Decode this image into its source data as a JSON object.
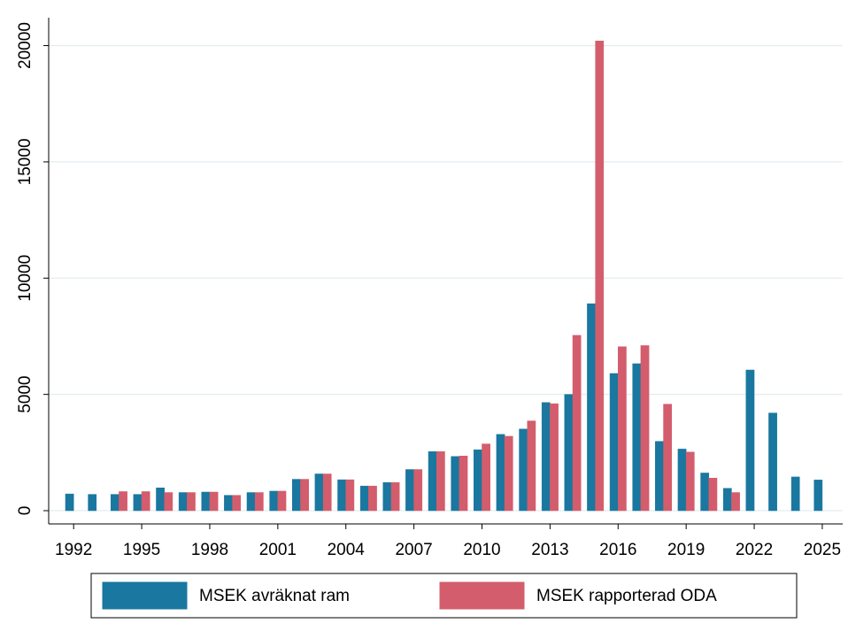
{
  "chart_data": {
    "type": "bar",
    "x": [
      1992,
      1993,
      1994,
      1995,
      1996,
      1997,
      1998,
      1999,
      2000,
      2001,
      2002,
      2003,
      2004,
      2005,
      2006,
      2007,
      2008,
      2009,
      2010,
      2011,
      2012,
      2013,
      2014,
      2015,
      2016,
      2017,
      2018,
      2019,
      2020,
      2021,
      2022,
      2023,
      2024,
      2025
    ],
    "series": [
      {
        "name": "MSEK avräknat ram",
        "color": "#1a779f",
        "values": [
          720,
          700,
          700,
          700,
          980,
          780,
          800,
          660,
          780,
          840,
          1350,
          1580,
          1330,
          1060,
          1210,
          1770,
          2540,
          2330,
          2620,
          3280,
          3510,
          4650,
          5000,
          8900,
          5900,
          6320,
          2980,
          2650,
          1620,
          960,
          6050,
          4200,
          1450,
          1320
        ]
      },
      {
        "name": "MSEK rapporterad ODA",
        "color": "#d35d6c",
        "values": [
          null,
          null,
          820,
          820,
          780,
          780,
          800,
          660,
          780,
          840,
          1350,
          1580,
          1330,
          1060,
          1210,
          1770,
          2540,
          2350,
          2870,
          3200,
          3860,
          4600,
          7540,
          20200,
          7050,
          7100,
          4580,
          2520,
          1400,
          780,
          null,
          null,
          null,
          null
        ]
      }
    ],
    "xlim": [
      1990.9,
      2025.9
    ],
    "xticks": [
      1992,
      1995,
      1998,
      2001,
      2004,
      2007,
      2010,
      2013,
      2016,
      2019,
      2022,
      2025
    ],
    "ylim": [
      -570,
      21200
    ],
    "yticks": [
      0,
      5000,
      10000,
      15000,
      20000
    ],
    "grid": true,
    "legend": "bottom"
  }
}
